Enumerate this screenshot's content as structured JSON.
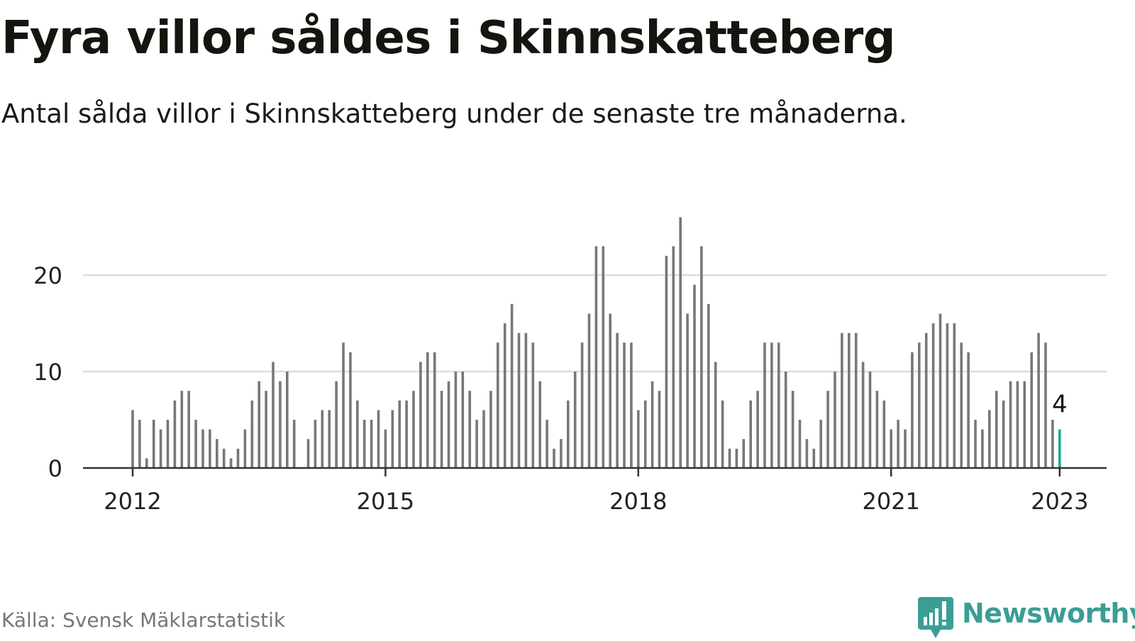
{
  "title": "Fyra villor såldes i Skinnskatteberg",
  "subtitle": "Antal sålda villor i Skinnskatteberg under de senaste tre månaderna.",
  "source": "Källa: Svensk Mäklarstatistik",
  "brand": "Newsworthy",
  "colors": {
    "bar": "#77777b",
    "highlight": "#1aa59b",
    "grid": "#dddddd",
    "axis": "#333333",
    "brand": "#3a9e95",
    "text": "#222222"
  },
  "chart_data": {
    "type": "bar",
    "x_start": "2012-01",
    "x_ticks": [
      "2012",
      "2015",
      "2018",
      "2021",
      "2023"
    ],
    "y_ticks": [
      0,
      10,
      20
    ],
    "ylim": [
      0,
      26
    ],
    "values": [
      6,
      5,
      1,
      5,
      4,
      5,
      7,
      8,
      8,
      5,
      4,
      4,
      3,
      2,
      1,
      2,
      4,
      7,
      9,
      8,
      11,
      9,
      10,
      5,
      null,
      3,
      5,
      6,
      6,
      9,
      13,
      12,
      7,
      5,
      5,
      6,
      4,
      6,
      7,
      7,
      8,
      11,
      12,
      12,
      8,
      9,
      10,
      10,
      8,
      5,
      6,
      8,
      13,
      15,
      17,
      14,
      14,
      13,
      9,
      5,
      2,
      3,
      7,
      10,
      13,
      16,
      23,
      23,
      16,
      14,
      13,
      13,
      6,
      7,
      9,
      8,
      22,
      23,
      26,
      16,
      19,
      23,
      17,
      11,
      7,
      2,
      2,
      3,
      7,
      8,
      13,
      13,
      13,
      10,
      8,
      5,
      3,
      2,
      5,
      8,
      10,
      14,
      14,
      14,
      11,
      10,
      8,
      7,
      4,
      5,
      4,
      12,
      13,
      14,
      15,
      16,
      15,
      15,
      13,
      12,
      5,
      4,
      6,
      8,
      7,
      9,
      9,
      9,
      12,
      14,
      13,
      5,
      4
    ],
    "highlight_label": "4"
  }
}
